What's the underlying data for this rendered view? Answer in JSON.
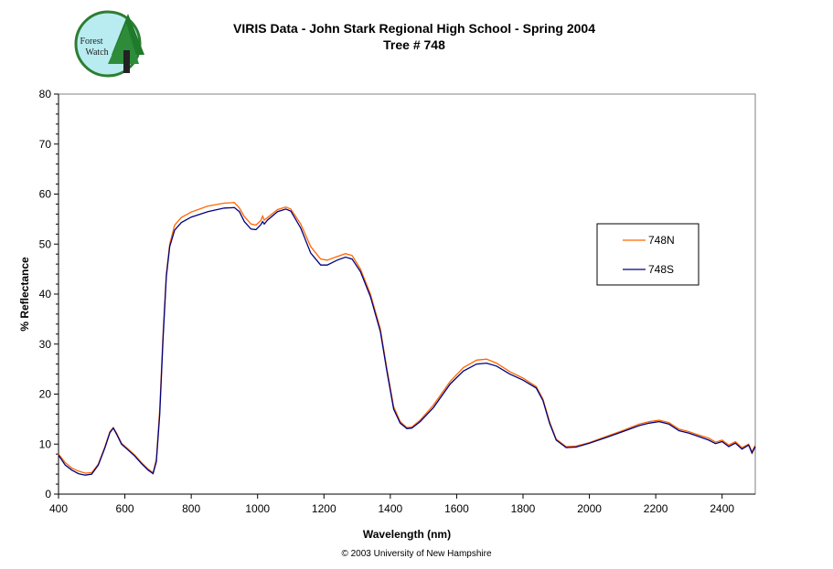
{
  "logo": {
    "text": "Forest Watch"
  },
  "chart_data": {
    "type": "line",
    "title": "VIRIS Data - John Stark Regional High School - Spring 2004",
    "subtitle": "Tree # 748",
    "xlabel": "Wavelength (nm)",
    "ylabel": "% Reflectance",
    "xlim": [
      400,
      2500
    ],
    "ylim": [
      0,
      80
    ],
    "xticks": [
      400,
      600,
      800,
      1000,
      1200,
      1400,
      1600,
      1800,
      2000,
      2200,
      2400
    ],
    "yticks": [
      0,
      10,
      20,
      30,
      40,
      50,
      60,
      70,
      80
    ],
    "grid": false,
    "legend": "right",
    "series": [
      {
        "name": "748N",
        "color": "#FF6600",
        "x": [
          400,
          420,
          440,
          460,
          480,
          500,
          520,
          540,
          555,
          565,
          575,
          590,
          610,
          630,
          650,
          670,
          685,
          695,
          705,
          715,
          725,
          735,
          750,
          770,
          800,
          850,
          900,
          930,
          945,
          960,
          980,
          995,
          1010,
          1015,
          1020,
          1030,
          1060,
          1085,
          1100,
          1130,
          1160,
          1190,
          1210,
          1240,
          1265,
          1285,
          1310,
          1340,
          1370,
          1390,
          1410,
          1430,
          1450,
          1465,
          1490,
          1530,
          1580,
          1620,
          1660,
          1690,
          1720,
          1760,
          1800,
          1840,
          1860,
          1880,
          1900,
          1930,
          1960,
          2000,
          2050,
          2100,
          2150,
          2180,
          2210,
          2240,
          2270,
          2300,
          2330,
          2360,
          2380,
          2400,
          2420,
          2440,
          2460,
          2480,
          2490,
          2500
        ],
        "y": [
          8,
          6.3,
          5.2,
          4.6,
          4.2,
          4.3,
          6,
          9.5,
          12.5,
          13.3,
          12.2,
          10.2,
          9,
          7.8,
          6.3,
          5,
          4.3,
          7,
          17,
          32,
          44,
          50,
          53.8,
          55.3,
          56.4,
          57.6,
          58.2,
          58.3,
          57.2,
          55.5,
          54,
          53.8,
          54.7,
          55.6,
          54.8,
          55.3,
          56.9,
          57.4,
          57,
          54,
          49.5,
          47,
          46.8,
          47.5,
          48.1,
          47.7,
          45,
          40,
          33,
          25,
          17.5,
          14.5,
          13.3,
          13.4,
          14.8,
          17.8,
          22.5,
          25.3,
          26.8,
          27,
          26.2,
          24.5,
          23.2,
          21.5,
          19,
          14.5,
          11,
          9.5,
          9.6,
          10.3,
          11.5,
          12.7,
          14,
          14.5,
          14.8,
          14.3,
          13,
          12.5,
          11.8,
          11.2,
          10.4,
          10.8,
          9.8,
          10.5,
          9.3,
          10,
          8.5,
          9.8
        ]
      },
      {
        "name": "748S",
        "color": "#000080",
        "x": [
          400,
          420,
          440,
          460,
          480,
          500,
          520,
          540,
          555,
          565,
          575,
          590,
          610,
          630,
          650,
          670,
          685,
          695,
          705,
          715,
          725,
          735,
          750,
          770,
          800,
          850,
          900,
          930,
          945,
          960,
          980,
          995,
          1010,
          1015,
          1020,
          1030,
          1060,
          1085,
          1100,
          1130,
          1160,
          1190,
          1210,
          1240,
          1265,
          1285,
          1310,
          1340,
          1370,
          1390,
          1410,
          1430,
          1450,
          1465,
          1490,
          1530,
          1580,
          1620,
          1660,
          1690,
          1720,
          1760,
          1800,
          1840,
          1860,
          1880,
          1900,
          1930,
          1960,
          2000,
          2050,
          2100,
          2150,
          2180,
          2210,
          2240,
          2270,
          2300,
          2330,
          2360,
          2380,
          2400,
          2420,
          2440,
          2460,
          2480,
          2490,
          2500
        ],
        "y": [
          7.8,
          5.8,
          4.8,
          4.1,
          3.8,
          4,
          5.8,
          9.3,
          12.3,
          13.2,
          12,
          10,
          8.8,
          7.6,
          6.1,
          4.8,
          4.1,
          6.5,
          16,
          31,
          43.5,
          49.5,
          52.8,
          54.3,
          55.4,
          56.5,
          57.2,
          57.3,
          56.5,
          54.5,
          53,
          52.9,
          53.9,
          54.5,
          54,
          54.8,
          56.5,
          57,
          56.6,
          53.2,
          48.2,
          45.8,
          45.8,
          46.8,
          47.4,
          47,
          44.5,
          39.5,
          32.5,
          24.5,
          17,
          14.2,
          13.1,
          13.2,
          14.5,
          17.3,
          22,
          24.6,
          26,
          26.2,
          25.6,
          24,
          22.8,
          21.2,
          18.7,
          14.2,
          10.8,
          9.3,
          9.4,
          10.2,
          11.3,
          12.5,
          13.7,
          14.2,
          14.5,
          14,
          12.7,
          12.2,
          11.5,
          10.8,
          10.1,
          10.5,
          9.5,
          10.2,
          9,
          9.8,
          8.2,
          9.5
        ]
      }
    ]
  },
  "copyright": "© 2003 University of New Hampshire"
}
